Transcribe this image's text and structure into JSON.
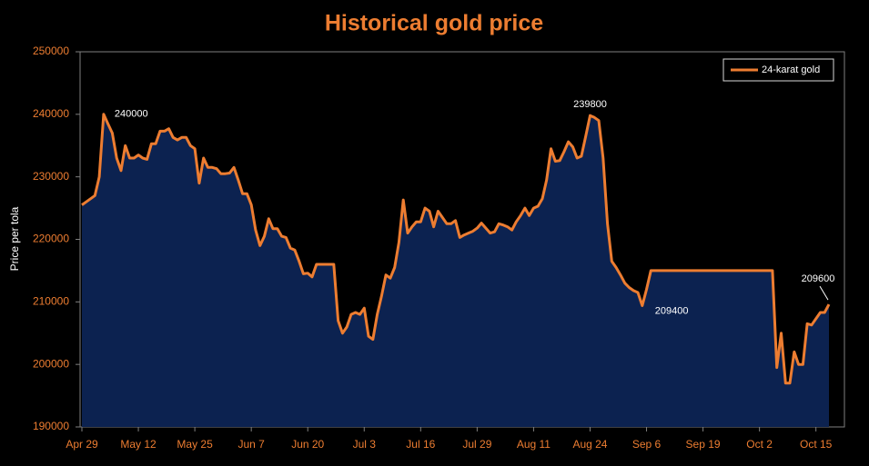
{
  "chart_data": {
    "type": "line",
    "title": "Historical gold price",
    "y_label": "Price per tola",
    "categories": [
      "Apr 29",
      null,
      null,
      null,
      null,
      null,
      null,
      null,
      null,
      null,
      null,
      null,
      null,
      "May 12",
      null,
      null,
      null,
      null,
      null,
      null,
      null,
      null,
      null,
      null,
      null,
      null,
      "May 25",
      null,
      null,
      null,
      null,
      null,
      null,
      null,
      null,
      null,
      null,
      null,
      null,
      "Jun 7",
      null,
      null,
      null,
      null,
      null,
      null,
      null,
      null,
      null,
      null,
      null,
      null,
      "Jun 20",
      null,
      null,
      null,
      null,
      null,
      null,
      null,
      null,
      null,
      null,
      null,
      null,
      "Jul 3",
      null,
      null,
      null,
      null,
      null,
      null,
      null,
      null,
      null,
      null,
      null,
      null,
      "Jul 16",
      null,
      null,
      null,
      null,
      null,
      null,
      null,
      null,
      null,
      null,
      null,
      null,
      "Jul 29",
      null,
      null,
      null,
      null,
      null,
      null,
      null,
      null,
      null,
      null,
      null,
      null,
      "Aug 11",
      null,
      null,
      null,
      null,
      null,
      null,
      null,
      null,
      null,
      null,
      null,
      null,
      "Aug 24",
      null,
      null,
      null,
      null,
      null,
      null,
      null,
      null,
      null,
      null,
      null,
      null,
      "Sep 6",
      null,
      null,
      null,
      null,
      null,
      null,
      null,
      null,
      null,
      null,
      null,
      null,
      "Sep 19",
      null,
      null,
      null,
      null,
      null,
      null,
      null,
      null,
      null,
      null,
      null,
      null,
      "Oct 2",
      null,
      null,
      null,
      null,
      null,
      null,
      null,
      null,
      null,
      null,
      null,
      null,
      "Oct 15",
      null,
      null,
      null
    ],
    "series": [
      {
        "name": "24-karat gold",
        "color": "#ed7d31",
        "fill": "#0c2250",
        "values": [
          225500,
          226000,
          226500,
          227000,
          230000,
          240000,
          238500,
          237000,
          233000,
          231000,
          235000,
          233000,
          233000,
          233500,
          233000,
          232800,
          235300,
          235300,
          237300,
          237300,
          237700,
          236300,
          235900,
          236300,
          236300,
          235000,
          234500,
          229000,
          233000,
          231500,
          231500,
          231300,
          230500,
          230500,
          230600,
          231500,
          229500,
          227300,
          227300,
          225500,
          221500,
          219000,
          220500,
          223300,
          221700,
          221700,
          220500,
          220300,
          218600,
          218300,
          216500,
          214500,
          214600,
          214000,
          216000,
          216000,
          216000,
          216000,
          216000,
          207000,
          205000,
          206000,
          208000,
          208300,
          208000,
          209000,
          204500,
          204000,
          208000,
          211000,
          214300,
          213800,
          215500,
          219500,
          226300,
          221000,
          222000,
          222800,
          222800,
          225000,
          224500,
          222000,
          224500,
          223500,
          222500,
          222500,
          223000,
          220300,
          220700,
          221000,
          221300,
          221800,
          222600,
          221800,
          221000,
          221200,
          222500,
          222300,
          222000,
          221500,
          222800,
          223800,
          225000,
          223800,
          225000,
          225300,
          226500,
          229500,
          234500,
          232500,
          232600,
          234000,
          235600,
          234800,
          233000,
          233300,
          236500,
          239800,
          239500,
          239000,
          233000,
          222500,
          216500,
          215500,
          214300,
          213000,
          212300,
          211800,
          211500,
          209400,
          212000,
          215000,
          215000,
          215000,
          215000,
          215000,
          215000,
          215000,
          215000,
          215000,
          215000,
          215000,
          215000,
          215000,
          215000,
          215000,
          215000,
          215000,
          215000,
          215000,
          215000,
          215000,
          215000,
          215000,
          215000,
          215000,
          215000,
          215000,
          215000,
          215000,
          199500,
          205000,
          197000,
          197000,
          202000,
          200000,
          200000,
          206500,
          206300,
          207300,
          208300,
          208300,
          209600
        ],
        "value_labels": [
          null,
          null,
          null,
          null,
          null,
          "240000",
          null,
          null,
          null,
          null,
          null,
          null,
          null,
          null,
          null,
          null,
          null,
          null,
          null,
          null,
          null,
          null,
          null,
          null,
          null,
          null,
          null,
          null,
          null,
          null,
          null,
          null,
          null,
          null,
          null,
          null,
          null,
          null,
          null,
          null,
          null,
          null,
          null,
          null,
          null,
          null,
          null,
          null,
          null,
          null,
          null,
          null,
          null,
          null,
          null,
          null,
          null,
          null,
          null,
          null,
          null,
          null,
          null,
          null,
          null,
          null,
          null,
          null,
          null,
          null,
          null,
          null,
          null,
          null,
          null,
          null,
          null,
          null,
          null,
          null,
          null,
          null,
          null,
          null,
          null,
          null,
          null,
          null,
          null,
          null,
          null,
          null,
          null,
          null,
          null,
          null,
          null,
          null,
          null,
          null,
          null,
          null,
          null,
          null,
          null,
          null,
          null,
          null,
          null,
          null,
          null,
          null,
          null,
          null,
          null,
          null,
          null,
          "239800",
          null,
          null,
          null,
          null,
          null,
          null,
          null,
          null,
          null,
          null,
          null,
          "209400",
          null,
          null,
          null,
          null,
          null,
          null,
          null,
          null,
          null,
          null,
          null,
          null,
          null,
          null,
          null,
          null,
          null,
          null,
          null,
          null,
          null,
          null,
          null,
          null,
          null,
          null,
          null,
          null,
          null,
          null,
          null,
          null,
          null,
          null,
          null,
          null,
          null,
          null,
          null,
          null,
          null,
          null,
          "209600"
        ]
      }
    ],
    "ylim": [
      190000,
      250000
    ],
    "yticks": [
      190000,
      200000,
      210000,
      220000,
      230000,
      240000,
      250000
    ],
    "grid": false,
    "legend": "top-right",
    "area": true
  }
}
